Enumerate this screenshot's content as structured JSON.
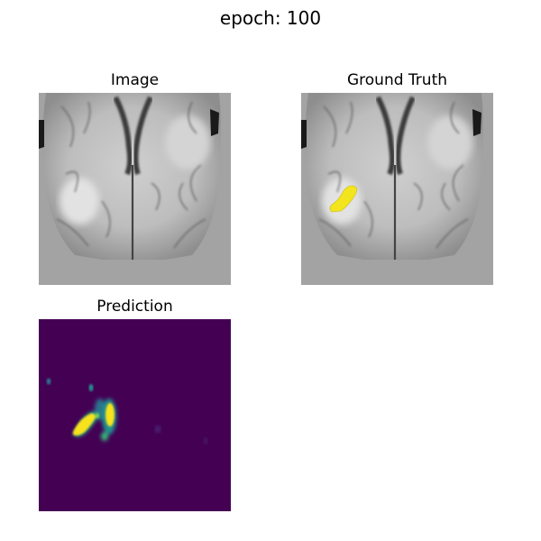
{
  "figure": {
    "title": "epoch: 100"
  },
  "panels": {
    "image": {
      "title": "Image"
    },
    "ground_truth": {
      "title": "Ground Truth",
      "overlay_color": "#f2e51d"
    },
    "prediction": {
      "title": "Prediction",
      "colormap": "viridis",
      "background_color": "#440154",
      "peak_color": "#f7e21e"
    }
  }
}
